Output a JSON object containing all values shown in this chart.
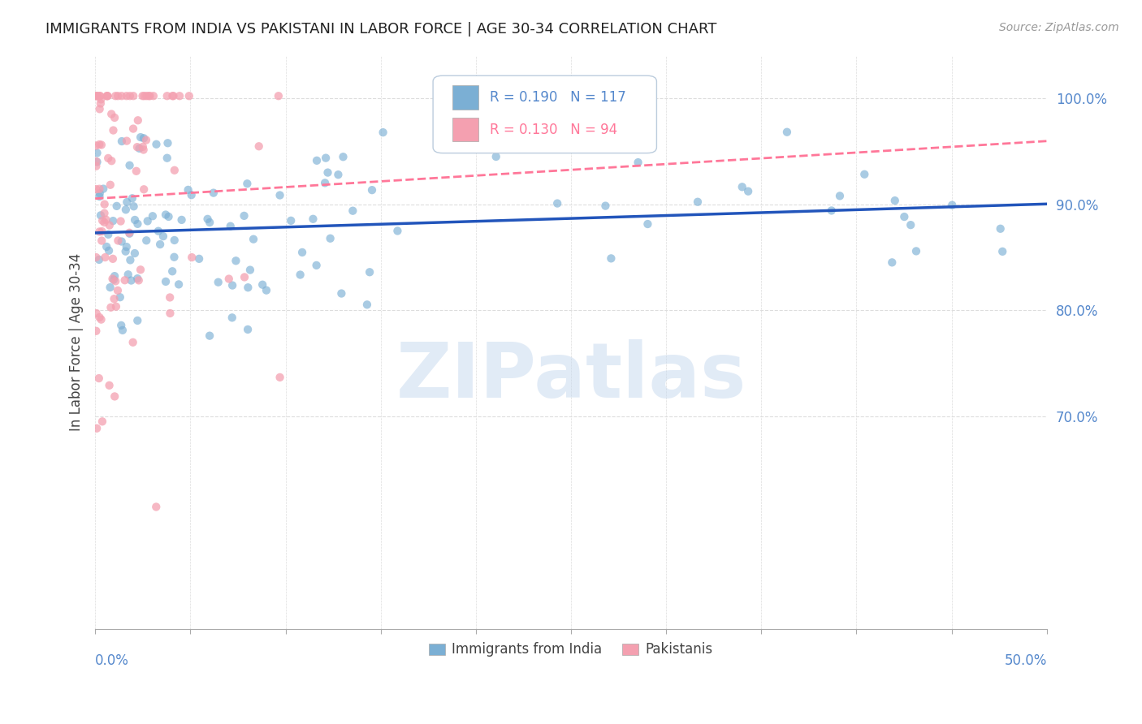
{
  "title": "IMMIGRANTS FROM INDIA VS PAKISTANI IN LABOR FORCE | AGE 30-34 CORRELATION CHART",
  "source": "Source: ZipAtlas.com",
  "ylabel": "In Labor Force | Age 30-34",
  "ytick_values": [
    1.0,
    0.9,
    0.8,
    0.7
  ],
  "xmin": 0.0,
  "xmax": 0.5,
  "ymin": 0.5,
  "ymax": 1.04,
  "R_india": 0.19,
  "N_india": 117,
  "R_pakistan": 0.13,
  "N_pakistan": 94,
  "india_color": "#7BAFD4",
  "pakistan_color": "#F4A0B0",
  "india_line_color": "#2255BB",
  "pakistan_line_color": "#FF7799",
  "watermark": "ZIPatlas",
  "watermark_color": "#C5D8EE",
  "legend_india": "Immigrants from India",
  "legend_pakistan": "Pakistanis",
  "title_color": "#222222",
  "axis_label_color": "#5588CC",
  "background_color": "#FFFFFF",
  "grid_color": "#DDDDDD"
}
